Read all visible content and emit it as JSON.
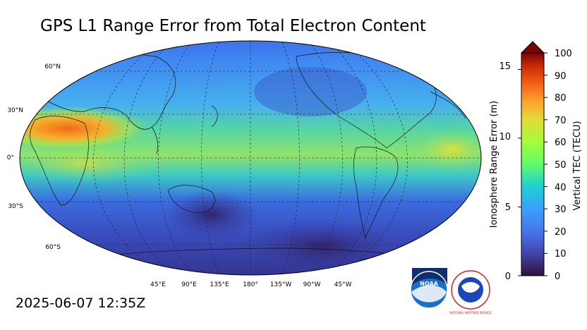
{
  "title": "GPS L1 Range Error from Total Electron Content",
  "timestamp": "2025-06-07 12:35Z",
  "map": {
    "lat_labels": [
      "60°N",
      "30°N",
      "0°",
      "30°S",
      "60°S"
    ],
    "lon_labels": [
      "45°E",
      "90°E",
      "135°E",
      "180°",
      "135°W",
      "90°W",
      "45°W"
    ]
  },
  "colorbar": {
    "left_label": "Ionosphere Range Error (m)",
    "right_label": "Vertical TEC (TECU)",
    "left_ticks": [
      "0",
      "5",
      "10",
      "15"
    ],
    "right_ticks": [
      "0",
      "10",
      "20",
      "30",
      "40",
      "50",
      "60",
      "70",
      "80",
      "90",
      "100"
    ],
    "range_tecu": [
      0,
      100
    ],
    "range_m": [
      0,
      16.2
    ]
  },
  "logos": {
    "noaa": "NOAA",
    "nws": "NATIONAL WEATHER SERVICE"
  },
  "colors": {
    "low": "#30123b",
    "mid_blue": "#3b82f6",
    "mid_green": "#4ade80",
    "high": "#7a0403"
  }
}
